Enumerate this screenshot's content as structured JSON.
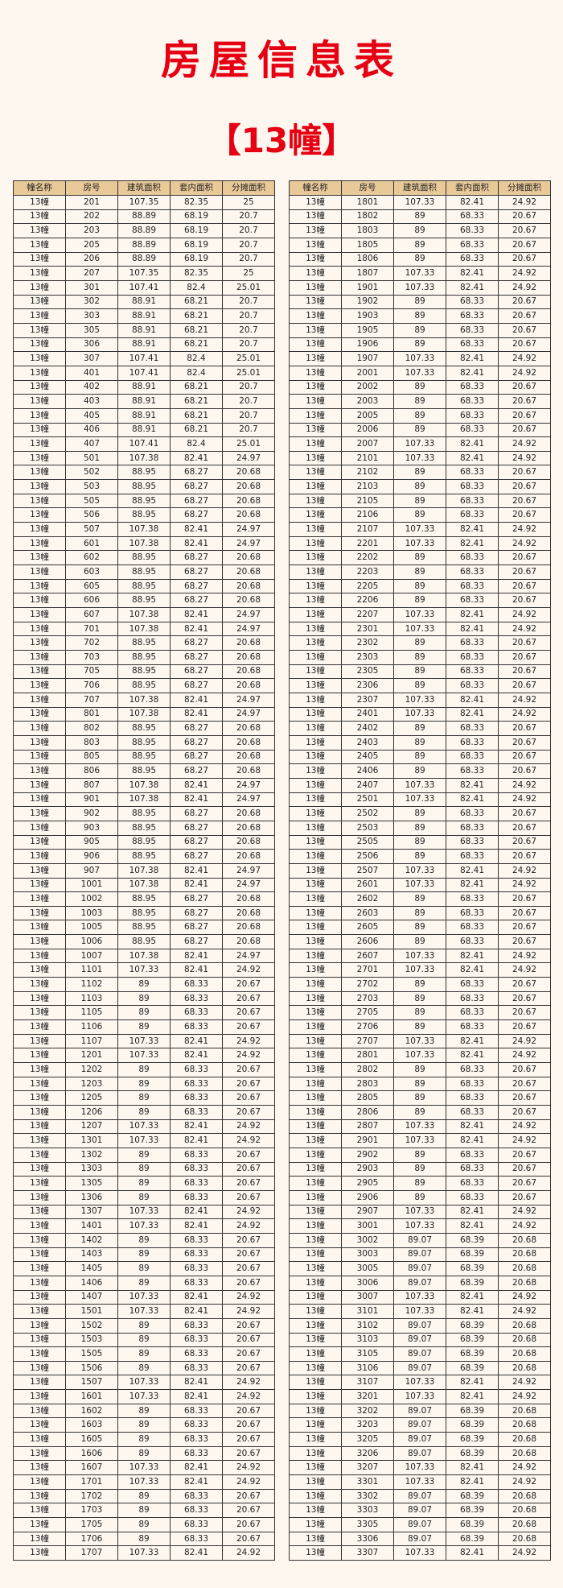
{
  "title": "房屋信息表",
  "subtitle": "【13幢】",
  "colors": {
    "title": "#e60012",
    "header_bg": "#e9c998",
    "background": "#fdf7f0"
  },
  "columns": [
    "幢名称",
    "房号",
    "建筑面积",
    "套内面积",
    "分摊面积"
  ],
  "left_rows": [
    [
      "13幢",
      "201",
      "107.35",
      "82.35",
      "25"
    ],
    [
      "13幢",
      "202",
      "88.89",
      "68.19",
      "20.7"
    ],
    [
      "13幢",
      "203",
      "88.89",
      "68.19",
      "20.7"
    ],
    [
      "13幢",
      "205",
      "88.89",
      "68.19",
      "20.7"
    ],
    [
      "13幢",
      "206",
      "88.89",
      "68.19",
      "20.7"
    ],
    [
      "13幢",
      "207",
      "107.35",
      "82.35",
      "25"
    ],
    [
      "13幢",
      "301",
      "107.41",
      "82.4",
      "25.01"
    ],
    [
      "13幢",
      "302",
      "88.91",
      "68.21",
      "20.7"
    ],
    [
      "13幢",
      "303",
      "88.91",
      "68.21",
      "20.7"
    ],
    [
      "13幢",
      "305",
      "88.91",
      "68.21",
      "20.7"
    ],
    [
      "13幢",
      "306",
      "88.91",
      "68.21",
      "20.7"
    ],
    [
      "13幢",
      "307",
      "107.41",
      "82.4",
      "25.01"
    ],
    [
      "13幢",
      "401",
      "107.41",
      "82.4",
      "25.01"
    ],
    [
      "13幢",
      "402",
      "88.91",
      "68.21",
      "20.7"
    ],
    [
      "13幢",
      "403",
      "88.91",
      "68.21",
      "20.7"
    ],
    [
      "13幢",
      "405",
      "88.91",
      "68.21",
      "20.7"
    ],
    [
      "13幢",
      "406",
      "88.91",
      "68.21",
      "20.7"
    ],
    [
      "13幢",
      "407",
      "107.41",
      "82.4",
      "25.01"
    ],
    [
      "13幢",
      "501",
      "107.38",
      "82.41",
      "24.97"
    ],
    [
      "13幢",
      "502",
      "88.95",
      "68.27",
      "20.68"
    ],
    [
      "13幢",
      "503",
      "88.95",
      "68.27",
      "20.68"
    ],
    [
      "13幢",
      "505",
      "88.95",
      "68.27",
      "20.68"
    ],
    [
      "13幢",
      "506",
      "88.95",
      "68.27",
      "20.68"
    ],
    [
      "13幢",
      "507",
      "107.38",
      "82.41",
      "24.97"
    ],
    [
      "13幢",
      "601",
      "107.38",
      "82.41",
      "24.97"
    ],
    [
      "13幢",
      "602",
      "88.95",
      "68.27",
      "20.68"
    ],
    [
      "13幢",
      "603",
      "88.95",
      "68.27",
      "20.68"
    ],
    [
      "13幢",
      "605",
      "88.95",
      "68.27",
      "20.68"
    ],
    [
      "13幢",
      "606",
      "88.95",
      "68.27",
      "20.68"
    ],
    [
      "13幢",
      "607",
      "107.38",
      "82.41",
      "24.97"
    ],
    [
      "13幢",
      "701",
      "107.38",
      "82.41",
      "24.97"
    ],
    [
      "13幢",
      "702",
      "88.95",
      "68.27",
      "20.68"
    ],
    [
      "13幢",
      "703",
      "88.95",
      "68.27",
      "20.68"
    ],
    [
      "13幢",
      "705",
      "88.95",
      "68.27",
      "20.68"
    ],
    [
      "13幢",
      "706",
      "88.95",
      "68.27",
      "20.68"
    ],
    [
      "13幢",
      "707",
      "107.38",
      "82.41",
      "24.97"
    ],
    [
      "13幢",
      "801",
      "107.38",
      "82.41",
      "24.97"
    ],
    [
      "13幢",
      "802",
      "88.95",
      "68.27",
      "20.68"
    ],
    [
      "13幢",
      "803",
      "88.95",
      "68.27",
      "20.68"
    ],
    [
      "13幢",
      "805",
      "88.95",
      "68.27",
      "20.68"
    ],
    [
      "13幢",
      "806",
      "88.95",
      "68.27",
      "20.68"
    ],
    [
      "13幢",
      "807",
      "107.38",
      "82.41",
      "24.97"
    ],
    [
      "13幢",
      "901",
      "107.38",
      "82.41",
      "24.97"
    ],
    [
      "13幢",
      "902",
      "88.95",
      "68.27",
      "20.68"
    ],
    [
      "13幢",
      "903",
      "88.95",
      "68.27",
      "20.68"
    ],
    [
      "13幢",
      "905",
      "88.95",
      "68.27",
      "20.68"
    ],
    [
      "13幢",
      "906",
      "88.95",
      "68.27",
      "20.68"
    ],
    [
      "13幢",
      "907",
      "107.38",
      "82.41",
      "24.97"
    ],
    [
      "13幢",
      "1001",
      "107.38",
      "82.41",
      "24.97"
    ],
    [
      "13幢",
      "1002",
      "88.95",
      "68.27",
      "20.68"
    ],
    [
      "13幢",
      "1003",
      "88.95",
      "68.27",
      "20.68"
    ],
    [
      "13幢",
      "1005",
      "88.95",
      "68.27",
      "20.68"
    ],
    [
      "13幢",
      "1006",
      "88.95",
      "68.27",
      "20.68"
    ],
    [
      "13幢",
      "1007",
      "107.38",
      "82.41",
      "24.97"
    ],
    [
      "13幢",
      "1101",
      "107.33",
      "82.41",
      "24.92"
    ],
    [
      "13幢",
      "1102",
      "89",
      "68.33",
      "20.67"
    ],
    [
      "13幢",
      "1103",
      "89",
      "68.33",
      "20.67"
    ],
    [
      "13幢",
      "1105",
      "89",
      "68.33",
      "20.67"
    ],
    [
      "13幢",
      "1106",
      "89",
      "68.33",
      "20.67"
    ],
    [
      "13幢",
      "1107",
      "107.33",
      "82.41",
      "24.92"
    ],
    [
      "13幢",
      "1201",
      "107.33",
      "82.41",
      "24.92"
    ],
    [
      "13幢",
      "1202",
      "89",
      "68.33",
      "20.67"
    ],
    [
      "13幢",
      "1203",
      "89",
      "68.33",
      "20.67"
    ],
    [
      "13幢",
      "1205",
      "89",
      "68.33",
      "20.67"
    ],
    [
      "13幢",
      "1206",
      "89",
      "68.33",
      "20.67"
    ],
    [
      "13幢",
      "1207",
      "107.33",
      "82.41",
      "24.92"
    ],
    [
      "13幢",
      "1301",
      "107.33",
      "82.41",
      "24.92"
    ],
    [
      "13幢",
      "1302",
      "89",
      "68.33",
      "20.67"
    ],
    [
      "13幢",
      "1303",
      "89",
      "68.33",
      "20.67"
    ],
    [
      "13幢",
      "1305",
      "89",
      "68.33",
      "20.67"
    ],
    [
      "13幢",
      "1306",
      "89",
      "68.33",
      "20.67"
    ],
    [
      "13幢",
      "1307",
      "107.33",
      "82.41",
      "24.92"
    ],
    [
      "13幢",
      "1401",
      "107.33",
      "82.41",
      "24.92"
    ],
    [
      "13幢",
      "1402",
      "89",
      "68.33",
      "20.67"
    ],
    [
      "13幢",
      "1403",
      "89",
      "68.33",
      "20.67"
    ],
    [
      "13幢",
      "1405",
      "89",
      "68.33",
      "20.67"
    ],
    [
      "13幢",
      "1406",
      "89",
      "68.33",
      "20.67"
    ],
    [
      "13幢",
      "1407",
      "107.33",
      "82.41",
      "24.92"
    ],
    [
      "13幢",
      "1501",
      "107.33",
      "82.41",
      "24.92"
    ],
    [
      "13幢",
      "1502",
      "89",
      "68.33",
      "20.67"
    ],
    [
      "13幢",
      "1503",
      "89",
      "68.33",
      "20.67"
    ],
    [
      "13幢",
      "1505",
      "89",
      "68.33",
      "20.67"
    ],
    [
      "13幢",
      "1506",
      "89",
      "68.33",
      "20.67"
    ],
    [
      "13幢",
      "1507",
      "107.33",
      "82.41",
      "24.92"
    ],
    [
      "13幢",
      "1601",
      "107.33",
      "82.41",
      "24.92"
    ],
    [
      "13幢",
      "1602",
      "89",
      "68.33",
      "20.67"
    ],
    [
      "13幢",
      "1603",
      "89",
      "68.33",
      "20.67"
    ],
    [
      "13幢",
      "1605",
      "89",
      "68.33",
      "20.67"
    ],
    [
      "13幢",
      "1606",
      "89",
      "68.33",
      "20.67"
    ],
    [
      "13幢",
      "1607",
      "107.33",
      "82.41",
      "24.92"
    ],
    [
      "13幢",
      "1701",
      "107.33",
      "82.41",
      "24.92"
    ],
    [
      "13幢",
      "1702",
      "89",
      "68.33",
      "20.67"
    ],
    [
      "13幢",
      "1703",
      "89",
      "68.33",
      "20.67"
    ],
    [
      "13幢",
      "1705",
      "89",
      "68.33",
      "20.67"
    ],
    [
      "13幢",
      "1706",
      "89",
      "68.33",
      "20.67"
    ],
    [
      "13幢",
      "1707",
      "107.33",
      "82.41",
      "24.92"
    ]
  ],
  "right_rows": [
    [
      "13幢",
      "1801",
      "107.33",
      "82.41",
      "24.92"
    ],
    [
      "13幢",
      "1802",
      "89",
      "68.33",
      "20.67"
    ],
    [
      "13幢",
      "1803",
      "89",
      "68.33",
      "20.67"
    ],
    [
      "13幢",
      "1805",
      "89",
      "68.33",
      "20.67"
    ],
    [
      "13幢",
      "1806",
      "89",
      "68.33",
      "20.67"
    ],
    [
      "13幢",
      "1807",
      "107.33",
      "82.41",
      "24.92"
    ],
    [
      "13幢",
      "1901",
      "107.33",
      "82.41",
      "24.92"
    ],
    [
      "13幢",
      "1902",
      "89",
      "68.33",
      "20.67"
    ],
    [
      "13幢",
      "1903",
      "89",
      "68.33",
      "20.67"
    ],
    [
      "13幢",
      "1905",
      "89",
      "68.33",
      "20.67"
    ],
    [
      "13幢",
      "1906",
      "89",
      "68.33",
      "20.67"
    ],
    [
      "13幢",
      "1907",
      "107.33",
      "82.41",
      "24.92"
    ],
    [
      "13幢",
      "2001",
      "107.33",
      "82.41",
      "24.92"
    ],
    [
      "13幢",
      "2002",
      "89",
      "68.33",
      "20.67"
    ],
    [
      "13幢",
      "2003",
      "89",
      "68.33",
      "20.67"
    ],
    [
      "13幢",
      "2005",
      "89",
      "68.33",
      "20.67"
    ],
    [
      "13幢",
      "2006",
      "89",
      "68.33",
      "20.67"
    ],
    [
      "13幢",
      "2007",
      "107.33",
      "82.41",
      "24.92"
    ],
    [
      "13幢",
      "2101",
      "107.33",
      "82.41",
      "24.92"
    ],
    [
      "13幢",
      "2102",
      "89",
      "68.33",
      "20.67"
    ],
    [
      "13幢",
      "2103",
      "89",
      "68.33",
      "20.67"
    ],
    [
      "13幢",
      "2105",
      "89",
      "68.33",
      "20.67"
    ],
    [
      "13幢",
      "2106",
      "89",
      "68.33",
      "20.67"
    ],
    [
      "13幢",
      "2107",
      "107.33",
      "82.41",
      "24.92"
    ],
    [
      "13幢",
      "2201",
      "107.33",
      "82.41",
      "24.92"
    ],
    [
      "13幢",
      "2202",
      "89",
      "68.33",
      "20.67"
    ],
    [
      "13幢",
      "2203",
      "89",
      "68.33",
      "20.67"
    ],
    [
      "13幢",
      "2205",
      "89",
      "68.33",
      "20.67"
    ],
    [
      "13幢",
      "2206",
      "89",
      "68.33",
      "20.67"
    ],
    [
      "13幢",
      "2207",
      "107.33",
      "82.41",
      "24.92"
    ],
    [
      "13幢",
      "2301",
      "107.33",
      "82.41",
      "24.92"
    ],
    [
      "13幢",
      "2302",
      "89",
      "68.33",
      "20.67"
    ],
    [
      "13幢",
      "2303",
      "89",
      "68.33",
      "20.67"
    ],
    [
      "13幢",
      "2305",
      "89",
      "68.33",
      "20.67"
    ],
    [
      "13幢",
      "2306",
      "89",
      "68.33",
      "20.67"
    ],
    [
      "13幢",
      "2307",
      "107.33",
      "82.41",
      "24.92"
    ],
    [
      "13幢",
      "2401",
      "107.33",
      "82.41",
      "24.92"
    ],
    [
      "13幢",
      "2402",
      "89",
      "68.33",
      "20.67"
    ],
    [
      "13幢",
      "2403",
      "89",
      "68.33",
      "20.67"
    ],
    [
      "13幢",
      "2405",
      "89",
      "68.33",
      "20.67"
    ],
    [
      "13幢",
      "2406",
      "89",
      "68.33",
      "20.67"
    ],
    [
      "13幢",
      "2407",
      "107.33",
      "82.41",
      "24.92"
    ],
    [
      "13幢",
      "2501",
      "107.33",
      "82.41",
      "24.92"
    ],
    [
      "13幢",
      "2502",
      "89",
      "68.33",
      "20.67"
    ],
    [
      "13幢",
      "2503",
      "89",
      "68.33",
      "20.67"
    ],
    [
      "13幢",
      "2505",
      "89",
      "68.33",
      "20.67"
    ],
    [
      "13幢",
      "2506",
      "89",
      "68.33",
      "20.67"
    ],
    [
      "13幢",
      "2507",
      "107.33",
      "82.41",
      "24.92"
    ],
    [
      "13幢",
      "2601",
      "107.33",
      "82.41",
      "24.92"
    ],
    [
      "13幢",
      "2602",
      "89",
      "68.33",
      "20.67"
    ],
    [
      "13幢",
      "2603",
      "89",
      "68.33",
      "20.67"
    ],
    [
      "13幢",
      "2605",
      "89",
      "68.33",
      "20.67"
    ],
    [
      "13幢",
      "2606",
      "89",
      "68.33",
      "20.67"
    ],
    [
      "13幢",
      "2607",
      "107.33",
      "82.41",
      "24.92"
    ],
    [
      "13幢",
      "2701",
      "107.33",
      "82.41",
      "24.92"
    ],
    [
      "13幢",
      "2702",
      "89",
      "68.33",
      "20.67"
    ],
    [
      "13幢",
      "2703",
      "89",
      "68.33",
      "20.67"
    ],
    [
      "13幢",
      "2705",
      "89",
      "68.33",
      "20.67"
    ],
    [
      "13幢",
      "2706",
      "89",
      "68.33",
      "20.67"
    ],
    [
      "13幢",
      "2707",
      "107.33",
      "82.41",
      "24.92"
    ],
    [
      "13幢",
      "2801",
      "107.33",
      "82.41",
      "24.92"
    ],
    [
      "13幢",
      "2802",
      "89",
      "68.33",
      "20.67"
    ],
    [
      "13幢",
      "2803",
      "89",
      "68.33",
      "20.67"
    ],
    [
      "13幢",
      "2805",
      "89",
      "68.33",
      "20.67"
    ],
    [
      "13幢",
      "2806",
      "89",
      "68.33",
      "20.67"
    ],
    [
      "13幢",
      "2807",
      "107.33",
      "82.41",
      "24.92"
    ],
    [
      "13幢",
      "2901",
      "107.33",
      "82.41",
      "24.92"
    ],
    [
      "13幢",
      "2902",
      "89",
      "68.33",
      "20.67"
    ],
    [
      "13幢",
      "2903",
      "89",
      "68.33",
      "20.67"
    ],
    [
      "13幢",
      "2905",
      "89",
      "68.33",
      "20.67"
    ],
    [
      "13幢",
      "2906",
      "89",
      "68.33",
      "20.67"
    ],
    [
      "13幢",
      "2907",
      "107.33",
      "82.41",
      "24.92"
    ],
    [
      "13幢",
      "3001",
      "107.33",
      "82.41",
      "24.92"
    ],
    [
      "13幢",
      "3002",
      "89.07",
      "68.39",
      "20.68"
    ],
    [
      "13幢",
      "3003",
      "89.07",
      "68.39",
      "20.68"
    ],
    [
      "13幢",
      "3005",
      "89.07",
      "68.39",
      "20.68"
    ],
    [
      "13幢",
      "3006",
      "89.07",
      "68.39",
      "20.68"
    ],
    [
      "13幢",
      "3007",
      "107.33",
      "82.41",
      "24.92"
    ],
    [
      "13幢",
      "3101",
      "107.33",
      "82.41",
      "24.92"
    ],
    [
      "13幢",
      "3102",
      "89.07",
      "68.39",
      "20.68"
    ],
    [
      "13幢",
      "3103",
      "89.07",
      "68.39",
      "20.68"
    ],
    [
      "13幢",
      "3105",
      "89.07",
      "68.39",
      "20.68"
    ],
    [
      "13幢",
      "3106",
      "89.07",
      "68.39",
      "20.68"
    ],
    [
      "13幢",
      "3107",
      "107.33",
      "82.41",
      "24.92"
    ],
    [
      "13幢",
      "3201",
      "107.33",
      "82.41",
      "24.92"
    ],
    [
      "13幢",
      "3202",
      "89.07",
      "68.39",
      "20.68"
    ],
    [
      "13幢",
      "3203",
      "89.07",
      "68.39",
      "20.68"
    ],
    [
      "13幢",
      "3205",
      "89.07",
      "68.39",
      "20.68"
    ],
    [
      "13幢",
      "3206",
      "89.07",
      "68.39",
      "20.68"
    ],
    [
      "13幢",
      "3207",
      "107.33",
      "82.41",
      "24.92"
    ],
    [
      "13幢",
      "3301",
      "107.33",
      "82.41",
      "24.92"
    ],
    [
      "13幢",
      "3302",
      "89.07",
      "68.39",
      "20.68"
    ],
    [
      "13幢",
      "3303",
      "89.07",
      "68.39",
      "20.68"
    ],
    [
      "13幢",
      "3305",
      "89.07",
      "68.39",
      "20.68"
    ],
    [
      "13幢",
      "3306",
      "89.07",
      "68.39",
      "20.68"
    ],
    [
      "13幢",
      "3307",
      "107.33",
      "82.41",
      "24.92"
    ]
  ]
}
